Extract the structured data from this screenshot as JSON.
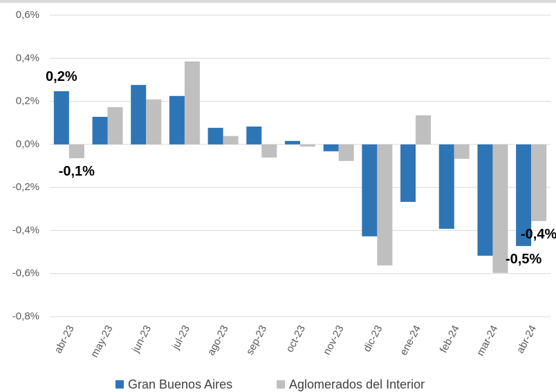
{
  "chart_data": {
    "type": "bar",
    "categories": [
      "abr-23",
      "may-23",
      "jun-23",
      "jul-23",
      "ago-23",
      "sep-23",
      "oct-23",
      "nov-23",
      "dic-23",
      "ene-24",
      "feb-24",
      "mar-24",
      "abr-24"
    ],
    "series": [
      {
        "name": "Gran Buenos Aires",
        "color": "#2e75b6",
        "values": [
          0.247,
          0.128,
          0.276,
          0.225,
          0.077,
          0.083,
          0.016,
          -0.032,
          -0.427,
          -0.267,
          -0.392,
          -0.517,
          -0.472
        ],
        "value_labels": [
          "0,2%",
          null,
          null,
          null,
          null,
          null,
          null,
          null,
          null,
          null,
          null,
          null,
          "-0,5%"
        ]
      },
      {
        "name": "Aglomerados del Interior",
        "color": "#bfbfbf",
        "values": [
          -0.064,
          0.173,
          0.209,
          0.385,
          0.039,
          -0.061,
          -0.01,
          -0.077,
          -0.562,
          0.135,
          -0.067,
          -0.597,
          -0.356
        ],
        "value_labels": [
          "-0,1%",
          null,
          null,
          null,
          null,
          null,
          null,
          null,
          null,
          null,
          null,
          null,
          "-0,4%"
        ]
      }
    ],
    "ylim": [
      -0.8,
      0.6
    ],
    "yticks": [
      {
        "value": -0.8,
        "label": "-0,8%"
      },
      {
        "value": -0.6,
        "label": "-0,6%"
      },
      {
        "value": -0.4,
        "label": "-0,4%"
      },
      {
        "value": -0.2,
        "label": "-0,2%"
      },
      {
        "value": 0,
        "label": "0,0%"
      },
      {
        "value": 0.2,
        "label": "0,2%"
      },
      {
        "value": 0.4,
        "label": "0,4%"
      },
      {
        "value": 0.6,
        "label": "0,6%"
      }
    ],
    "grid": true
  }
}
